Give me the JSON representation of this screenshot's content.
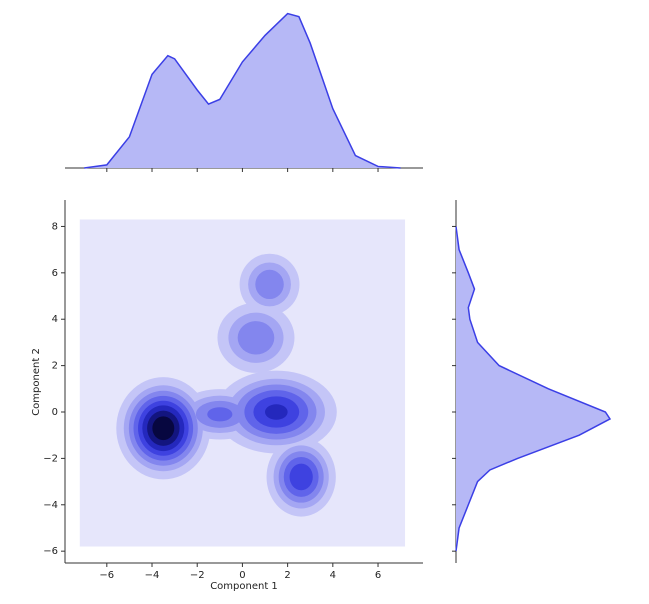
{
  "chart_data": {
    "type": "kde-joint",
    "x_label": "Component 1",
    "y_label": "Component 2",
    "xlim": [
      -7.85,
      7.99
    ],
    "ylim": [
      -6.51,
      9.14
    ],
    "xticks": [
      {
        "value": -6,
        "label": "−6"
      },
      {
        "value": -4,
        "label": "−4"
      },
      {
        "value": -2,
        "label": "−2"
      },
      0,
      2,
      4,
      6
    ],
    "yticks": [
      {
        "value": -6,
        "label": "−6"
      },
      {
        "value": -4,
        "label": "−4"
      },
      {
        "value": -2,
        "label": "−2"
      },
      0,
      2,
      4,
      6,
      8
    ],
    "kde_extent": {
      "x": [
        -7.2,
        7.2
      ],
      "y": [
        -5.8,
        8.3
      ]
    },
    "background_color": "#e6e6fb",
    "levels": [
      0.05,
      0.12,
      0.2,
      0.3,
      0.42,
      0.55,
      0.7,
      0.85
    ],
    "level_colors": [
      "#c4c5f7",
      "#a4a6f3",
      "#8386ee",
      "#6064ea",
      "#3e42e0",
      "#2428bd",
      "#13157f",
      "#070740"
    ],
    "clusters": [
      {
        "x": -3.5,
        "y": -0.7,
        "sx": 0.85,
        "sy": 0.9,
        "weight": 1.0
      },
      {
        "x": 1.5,
        "y": 0.0,
        "sx": 1.2,
        "sy": 0.8,
        "weight": 0.6
      },
      {
        "x": 2.6,
        "y": -2.8,
        "sx": 0.7,
        "sy": 0.78,
        "weight": 0.55
      },
      {
        "x": 1.2,
        "y": 5.5,
        "sx": 0.7,
        "sy": 0.7,
        "weight": 0.3
      },
      {
        "x": 0.6,
        "y": 3.2,
        "sx": 0.9,
        "sy": 0.8,
        "weight": 0.3
      },
      {
        "x": -1.0,
        "y": -0.1,
        "sx": 1.0,
        "sy": 0.55,
        "weight": 0.35
      }
    ],
    "marginal_x": {
      "x": [
        -7,
        -6,
        -5,
        -4,
        -3.3,
        -3,
        -2,
        -1.5,
        -1,
        0,
        1,
        2,
        2.5,
        3,
        4,
        5,
        6,
        7
      ],
      "density": [
        0,
        0.02,
        0.2,
        0.6,
        0.72,
        0.7,
        0.5,
        0.41,
        0.44,
        0.68,
        0.85,
        0.99,
        0.97,
        0.8,
        0.38,
        0.08,
        0.01,
        0
      ]
    },
    "marginal_y": {
      "y": [
        8,
        7,
        6,
        5.3,
        4.5,
        4,
        3,
        2,
        1,
        0,
        -0.3,
        -1,
        -2,
        -2.5,
        -3,
        -4,
        -5,
        -6
      ],
      "density": [
        0,
        0.02,
        0.08,
        0.12,
        0.08,
        0.09,
        0.14,
        0.28,
        0.6,
        0.97,
        1.0,
        0.8,
        0.4,
        0.22,
        0.14,
        0.08,
        0.02,
        0
      ]
    },
    "marginal_fill": "#b6b8f6",
    "marginal_line": "#3b3fe6"
  }
}
